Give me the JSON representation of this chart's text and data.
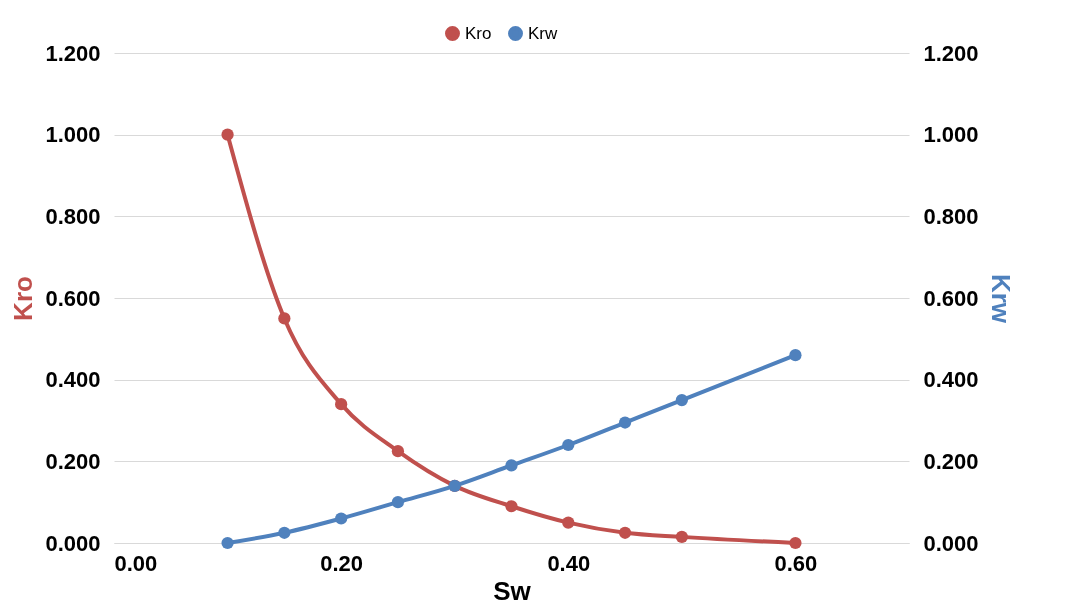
{
  "chart_data": {
    "type": "line",
    "xlabel": "Sw",
    "ylabel": "Kro",
    "y2label": "Krw",
    "x": [
      0.1,
      0.15,
      0.2,
      0.25,
      0.3,
      0.35,
      0.4,
      0.45,
      0.5,
      0.6
    ],
    "series": [
      {
        "name": "Kro",
        "color": "#c0504d",
        "values": [
          1.0,
          0.55,
          0.34,
          0.225,
          0.14,
          0.09,
          0.05,
          0.025,
          0.015,
          0.0
        ]
      },
      {
        "name": "Krw",
        "color": "#4f81bd",
        "axis": "y2",
        "values": [
          0.0,
          0.025,
          0.06,
          0.1,
          0.14,
          0.19,
          0.24,
          0.295,
          0.35,
          0.46
        ]
      }
    ],
    "xlim": [
      0,
      0.7
    ],
    "xticks": [
      {
        "value": 0,
        "label": "0.00"
      },
      {
        "value": 0.2,
        "label": "0.20"
      },
      {
        "value": 0.4,
        "label": "0.40"
      },
      {
        "value": 0.6,
        "label": "0.60"
      }
    ],
    "ylim": [
      0,
      1.2
    ],
    "yticks": [
      {
        "value": 0,
        "label": "0.000"
      },
      {
        "value": 0.2,
        "label": "0.200"
      },
      {
        "value": 0.4,
        "label": "0.400"
      },
      {
        "value": 0.6,
        "label": "0.600"
      },
      {
        "value": 0.8,
        "label": "0.800"
      },
      {
        "value": 1.0,
        "label": "1.000"
      },
      {
        "value": 1.2,
        "label": "1.200"
      }
    ],
    "y2lim": [
      0,
      1.2
    ],
    "y2ticks": [
      {
        "value": 0,
        "label": "0.000"
      },
      {
        "value": 0.2,
        "label": "0.200"
      },
      {
        "value": 0.4,
        "label": "0.400"
      },
      {
        "value": 0.6,
        "label": "0.600"
      },
      {
        "value": 0.8,
        "label": "0.800"
      },
      {
        "value": 1.0,
        "label": "1.000"
      },
      {
        "value": 1.2,
        "label": "1.200"
      }
    ],
    "grid": "y",
    "legend": "top",
    "marker": "circle",
    "line_style": "solid"
  }
}
